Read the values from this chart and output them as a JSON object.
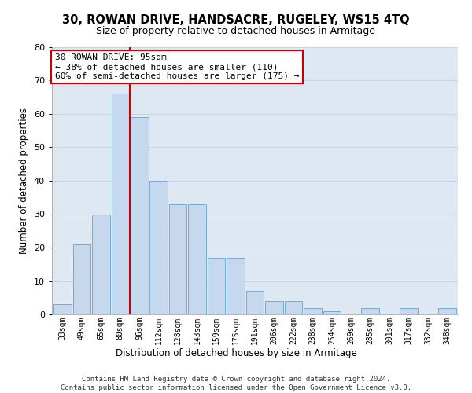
{
  "title": "30, ROWAN DRIVE, HANDSACRE, RUGELEY, WS15 4TQ",
  "subtitle": "Size of property relative to detached houses in Armitage",
  "xlabel": "Distribution of detached houses by size in Armitage",
  "ylabel": "Number of detached properties",
  "categories": [
    "33sqm",
    "49sqm",
    "65sqm",
    "80sqm",
    "96sqm",
    "112sqm",
    "128sqm",
    "143sqm",
    "159sqm",
    "175sqm",
    "191sqm",
    "206sqm",
    "222sqm",
    "238sqm",
    "254sqm",
    "269sqm",
    "285sqm",
    "301sqm",
    "317sqm",
    "332sqm",
    "348sqm"
  ],
  "values": [
    3,
    21,
    30,
    66,
    59,
    40,
    33,
    33,
    17,
    17,
    7,
    4,
    4,
    2,
    1,
    0,
    2,
    0,
    2,
    0,
    2
  ],
  "bar_color": "#c5d8ee",
  "bar_edge_color": "#7aaad0",
  "red_line_index": 3,
  "red_line_color": "#cc0000",
  "annotation_text": "30 ROWAN DRIVE: 95sqm\n← 38% of detached houses are smaller (110)\n60% of semi-detached houses are larger (175) →",
  "annotation_box_edgecolor": "#cc0000",
  "ylim": [
    0,
    80
  ],
  "yticks": [
    0,
    10,
    20,
    30,
    40,
    50,
    60,
    70,
    80
  ],
  "grid_color": "#c5d5e5",
  "bg_color": "#dde8f2",
  "footer": "Contains HM Land Registry data © Crown copyright and database right 2024.\nContains public sector information licensed under the Open Government Licence v3.0."
}
